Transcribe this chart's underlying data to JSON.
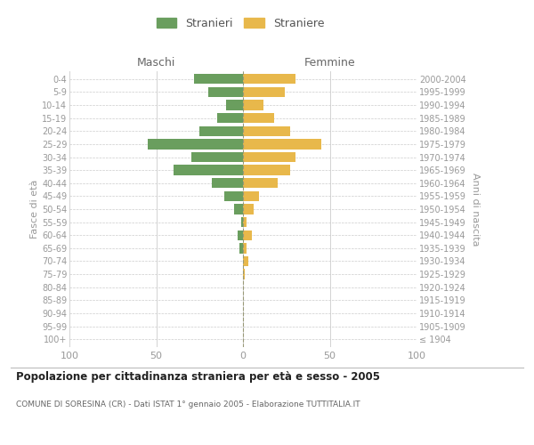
{
  "age_groups": [
    "100+",
    "95-99",
    "90-94",
    "85-89",
    "80-84",
    "75-79",
    "70-74",
    "65-69",
    "60-64",
    "55-59",
    "50-54",
    "45-49",
    "40-44",
    "35-39",
    "30-34",
    "25-29",
    "20-24",
    "15-19",
    "10-14",
    "5-9",
    "0-4"
  ],
  "birth_years": [
    "≤ 1904",
    "1905-1909",
    "1910-1914",
    "1915-1919",
    "1920-1924",
    "1925-1929",
    "1930-1934",
    "1935-1939",
    "1940-1944",
    "1945-1949",
    "1950-1954",
    "1955-1959",
    "1960-1964",
    "1965-1969",
    "1970-1974",
    "1975-1979",
    "1980-1984",
    "1985-1989",
    "1990-1994",
    "1995-1999",
    "2000-2004"
  ],
  "maschi": [
    0,
    0,
    0,
    0,
    0,
    0,
    0,
    2,
    3,
    1,
    5,
    11,
    18,
    40,
    30,
    55,
    25,
    15,
    10,
    20,
    28
  ],
  "femmine": [
    0,
    0,
    0,
    0,
    0,
    1,
    3,
    2,
    5,
    2,
    6,
    9,
    20,
    27,
    30,
    45,
    27,
    18,
    12,
    24,
    30
  ],
  "color_maschi": "#6a9e5e",
  "color_femmine": "#e8b84b",
  "title": "Popolazione per cittadinanza straniera per età e sesso - 2005",
  "subtitle": "COMUNE DI SORESINA (CR) - Dati ISTAT 1° gennaio 2005 - Elaborazione TUTTITALIA.IT",
  "ylabel_left": "Fasce di età",
  "ylabel_right": "Anni di nascita",
  "xlabel_left": "Maschi",
  "xlabel_right": "Femmine",
  "legend_stranieri": "Stranieri",
  "legend_straniere": "Straniere",
  "xlim": 100,
  "background_color": "#ffffff",
  "grid_color": "#cccccc"
}
